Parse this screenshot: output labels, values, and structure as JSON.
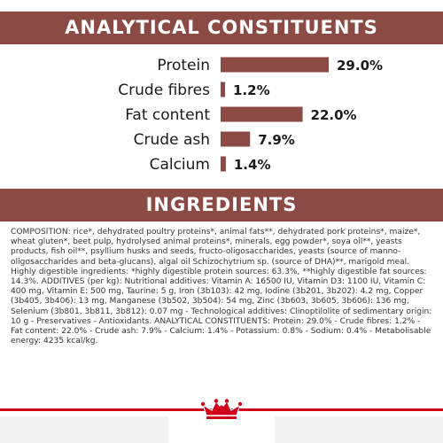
{
  "headers": {
    "analytical": "ANALYTICAL CONSTITUENTS",
    "ingredients": "INGREDIENTS"
  },
  "chart_data": {
    "type": "bar",
    "orientation": "horizontal",
    "categories": [
      "Protein",
      "Crude fibres",
      "Fat content",
      "Crude ash",
      "Calcium"
    ],
    "values": [
      29.0,
      1.2,
      22.0,
      7.9,
      1.4
    ],
    "value_labels": [
      "29.0%",
      "1.2%",
      "22.0%",
      "7.9%",
      "1.4%"
    ],
    "title": "ANALYTICAL CONSTITUENTS",
    "xlim": [
      0,
      29
    ],
    "grid": false,
    "bar_color": "#8b4a43"
  },
  "ingredients": {
    "text": "COMPOSITION: rice*, dehydrated poultry proteins*, animal fats**, dehydrated pork proteins*, maize*, wheat gluten*, beet pulp, hydrolysed animal proteins*, minerals, egg powder*, soya oil**, yeasts products, fish oil**, psyllium husks and seeds, fructo-oligosaccharides, yeasts (source of manno-oligosaccharides and beta-glucans), algal oil Schizochytrium sp. (source of DHA)**, marigold meal. Highly digestible ingredients: *highly digestible protein sources: 63.3%, **highly digestible fat sources: 14.3%. ADDITIVES (per kg): Nutritional additives: Vitamin A: 16500 IU, Vitamin D3: 1100 IU, Vitamin C: 400 mg, Vitamin E: 500 mg, Taurine: 5 g, Iron (3b103): 42 mg, Iodine (3b201, 3b202): 4.2 mg, Copper (3b405, 3b406): 13 mg, Manganese (3b502, 3b504): 54 mg, Zinc (3b603, 3b605, 3b606): 136 mg, Selenium (3b801, 3b811, 3b812): 0.07 mg - Technological additives: Clinoptilolite of sedimentary origin: 10 g - Preservatives - Antioxidants. ANALYTICAL CONSTITUENTS: Protein: 29.0% - Crude fibres: 1.2% - Fat content: 22.0% - Crude ash: 7.9% - Calcium: 1.4% - Potassium: 0.8% - Sodium: 0.4% - Metabolisable energy: 4235 kcal/kg."
  },
  "footer": {
    "logo_icon": "royal-canin-crown-icon",
    "line_color": "#d0021b"
  }
}
